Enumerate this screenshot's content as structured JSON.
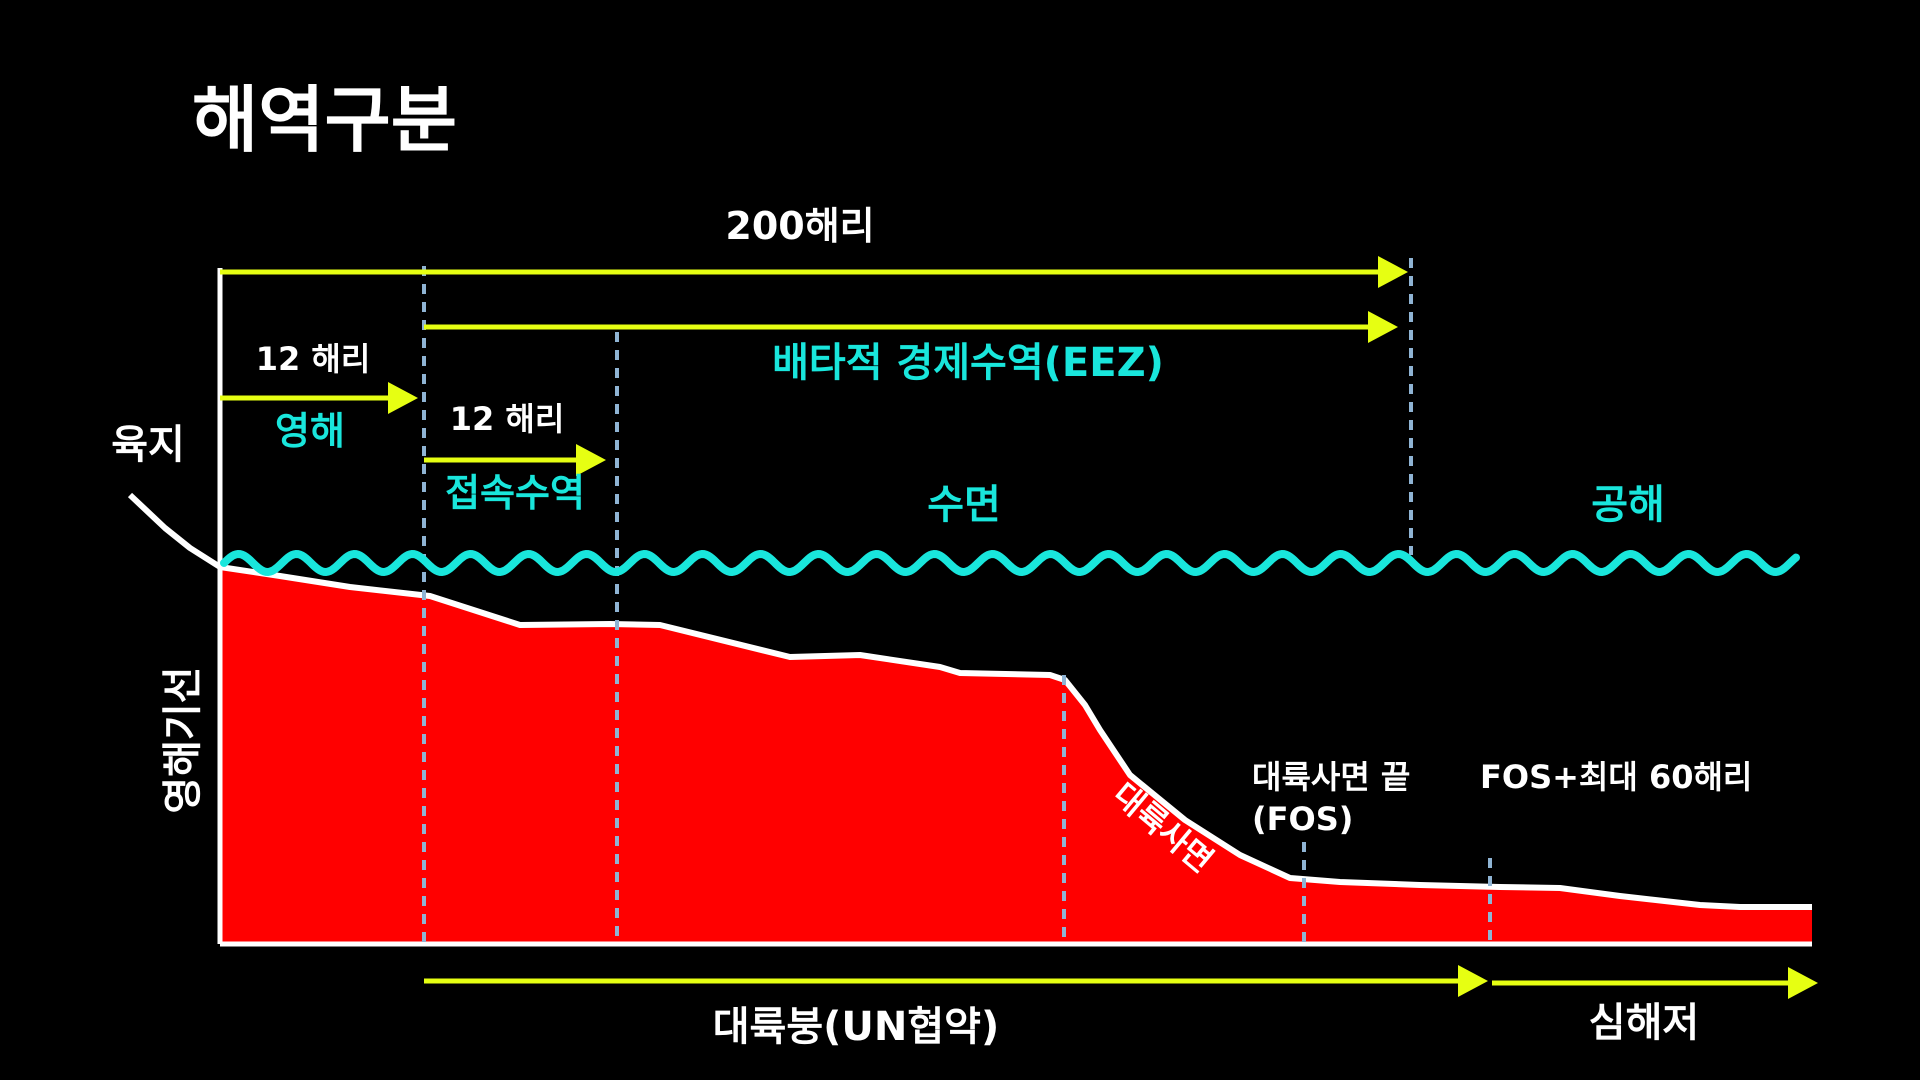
{
  "title": "해역구분",
  "colors": {
    "background": "#000000",
    "seabed_fill": "#ff0000",
    "water_line": "#19e6dc",
    "arrow": "#e6ff12",
    "boundary_dash": "#8fb4d4",
    "white": "#ffffff",
    "cyan_text": "#19e6dc"
  },
  "labels": {
    "nm200": "200해리",
    "nm12_a": "12 해리",
    "territorial_sea": "영해",
    "nm12_b": "12 해리",
    "contiguous_zone": "접속수역",
    "eez": "배타적 경제수역(EEZ)",
    "sea_surface": "수면",
    "high_seas": "공해",
    "land": "육지",
    "baseline": "영해기선",
    "continental_slope": "대륙사면",
    "fos_line1": "대륙사면 끝",
    "fos_line2": "(FOS)",
    "fos_plus": "FOS+최대 60해리",
    "continental_shelf": "대륙붕(UN협약)",
    "deep_seabed": "심해저"
  }
}
